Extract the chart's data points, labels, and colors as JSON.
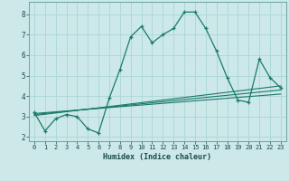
{
  "xlabel": "Humidex (Indice chaleur)",
  "bg_color": "#cce8e8",
  "grid_color": "#b0d8d8",
  "line_color": "#1a7a6a",
  "xlim": [
    -0.5,
    23.5
  ],
  "ylim": [
    1.8,
    8.6
  ],
  "yticks": [
    2,
    3,
    4,
    5,
    6,
    7,
    8
  ],
  "xticks": [
    0,
    1,
    2,
    3,
    4,
    5,
    6,
    7,
    8,
    9,
    10,
    11,
    12,
    13,
    14,
    15,
    16,
    17,
    18,
    19,
    20,
    21,
    22,
    23
  ],
  "series1_x": [
    0,
    1,
    2,
    3,
    4,
    5,
    6,
    7,
    8,
    9,
    10,
    11,
    12,
    13,
    14,
    15,
    16,
    17,
    18,
    19,
    20,
    21,
    22,
    23
  ],
  "series1_y": [
    3.2,
    2.3,
    2.9,
    3.1,
    3.0,
    2.4,
    2.2,
    3.9,
    5.3,
    6.9,
    7.4,
    6.6,
    7.0,
    7.3,
    8.1,
    8.1,
    7.3,
    6.2,
    4.9,
    3.8,
    3.7,
    5.8,
    4.9,
    4.4
  ],
  "series2_x": [
    0,
    23
  ],
  "series2_y": [
    3.05,
    4.5
  ],
  "series3_x": [
    0,
    23
  ],
  "series3_y": [
    3.1,
    4.3
  ],
  "series4_x": [
    0,
    23
  ],
  "series4_y": [
    3.15,
    4.1
  ]
}
